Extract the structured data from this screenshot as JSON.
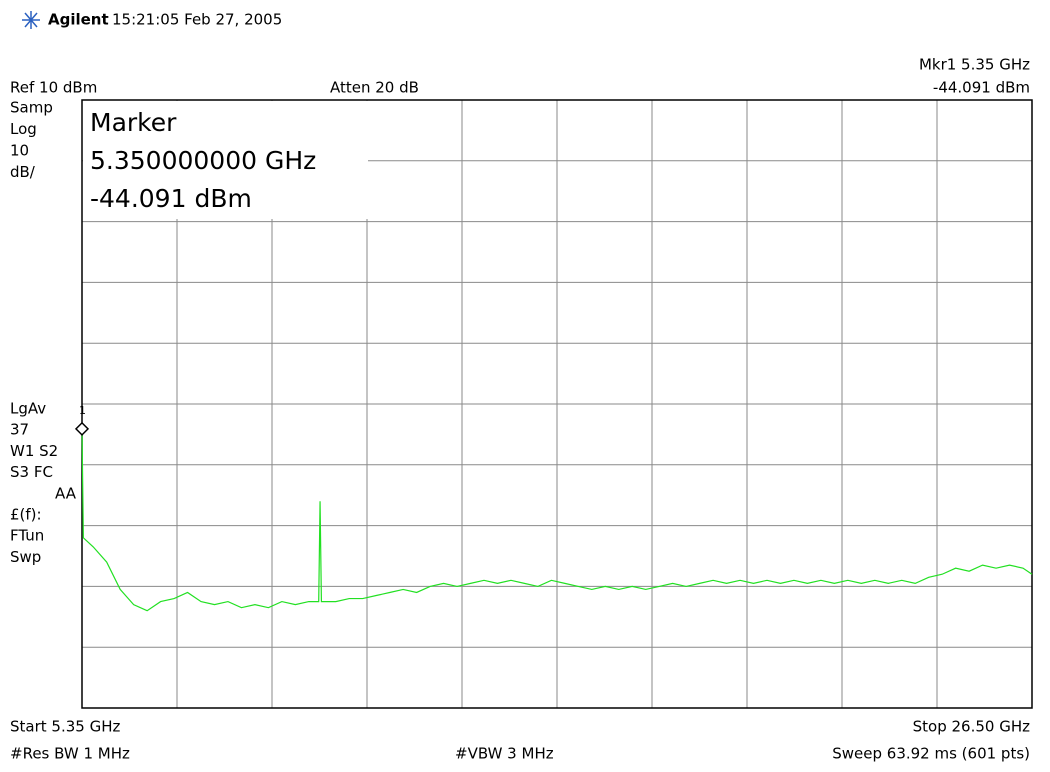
{
  "header": {
    "brand": "Agilent",
    "timestamp": "15:21:05  Feb 27, 2005"
  },
  "marker_readout": {
    "name": "Mkr1  5.35 GHz",
    "value": "-44.091 dBm"
  },
  "settings": {
    "ref": "Ref 10 dBm",
    "atten": "Atten 20 dB"
  },
  "left_labels_top": [
    "Samp",
    "Log",
    "10",
    "dB/"
  ],
  "left_labels_mid": [
    "LgAv",
    "37",
    "W1  S2",
    "S3  FC",
    "AA",
    "£(f):",
    "FTun",
    "Swp"
  ],
  "marker_box": {
    "title": "Marker",
    "frequency": "5.350000000 GHz",
    "amplitude": "-44.091 dBm"
  },
  "footer": {
    "start": "Start 5.35 GHz",
    "stop": "Stop 26.50 GHz",
    "rbw": "#Res BW 1 MHz",
    "vbw": "#VBW 3 MHz",
    "sweep": "Sweep 63.92 ms (601 pts)"
  },
  "chart_data": {
    "type": "line",
    "xlim": [
      5.35,
      26.5
    ],
    "ylim": [
      -90,
      10
    ],
    "grid": true,
    "grid_divisions": 10,
    "marker": {
      "label": "1",
      "x": 5.35,
      "y": -44.091
    },
    "series": [
      {
        "color": "#22e022",
        "x": [
          5.35,
          5.38,
          5.6,
          5.9,
          6.2,
          6.5,
          6.8,
          7.1,
          7.4,
          7.7,
          8.0,
          8.3,
          8.6,
          8.9,
          9.2,
          9.5,
          9.8,
          10.1,
          10.4,
          10.62,
          10.65,
          10.68,
          11.0,
          11.3,
          11.6,
          11.9,
          12.2,
          12.5,
          12.8,
          13.1,
          13.4,
          13.7,
          14.0,
          14.3,
          14.6,
          14.9,
          15.2,
          15.5,
          15.8,
          16.1,
          16.4,
          16.7,
          17.0,
          17.3,
          17.6,
          17.9,
          18.2,
          18.5,
          18.8,
          19.1,
          19.4,
          19.7,
          20.0,
          20.3,
          20.6,
          20.9,
          21.2,
          21.5,
          21.8,
          22.1,
          22.4,
          22.7,
          23.0,
          23.3,
          23.6,
          23.9,
          24.2,
          24.5,
          24.8,
          25.1,
          25.4,
          25.7,
          26.0,
          26.3,
          26.5
        ],
        "values": [
          -44.091,
          -62,
          -63.5,
          -66,
          -70.5,
          -73,
          -74,
          -72.5,
          -72,
          -71,
          -72.5,
          -73,
          -72.5,
          -73.5,
          -73,
          -73.5,
          -72.5,
          -73,
          -72.5,
          -72.5,
          -56,
          -72.5,
          -72.5,
          -72,
          -72,
          -71.5,
          -71,
          -70.5,
          -71,
          -70,
          -69.5,
          -70,
          -69.5,
          -69,
          -69.5,
          -69,
          -69.5,
          -70,
          -69,
          -69.5,
          -70,
          -70.5,
          -70,
          -70.5,
          -70,
          -70.5,
          -70,
          -69.5,
          -70,
          -69.5,
          -69,
          -69.5,
          -69,
          -69.5,
          -69,
          -69.5,
          -69,
          -69.5,
          -69,
          -69.5,
          -69,
          -69.5,
          -69,
          -69.5,
          -69,
          -69.5,
          -68.5,
          -68,
          -67,
          -67.5,
          -66.5,
          -67,
          -66.5,
          -67,
          -68
        ]
      }
    ]
  }
}
